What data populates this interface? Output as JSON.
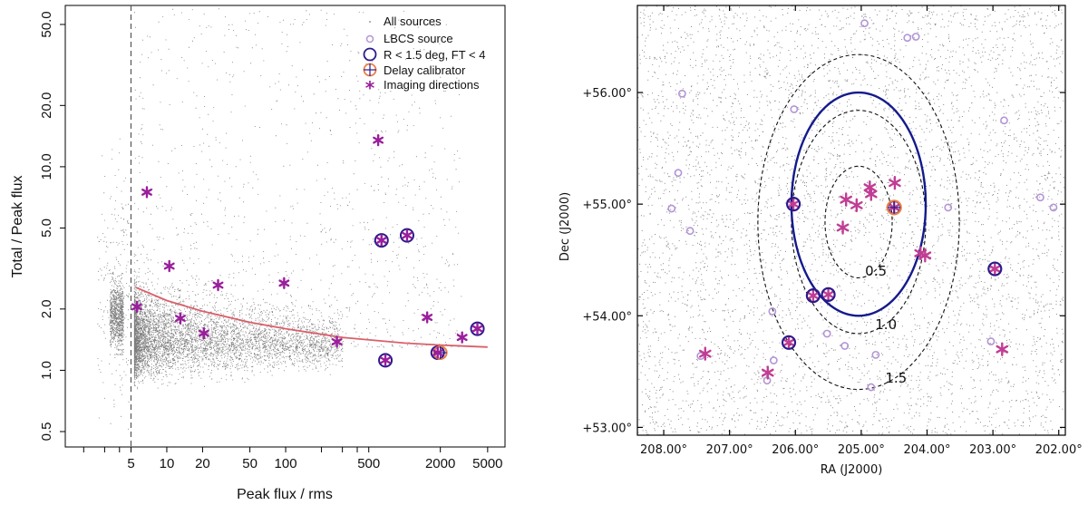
{
  "chart_data": [
    {
      "type": "scatter",
      "xscale": "log",
      "yscale": "log",
      "xlabel": "Peak flux / rms",
      "ylabel": "Total / Peak flux",
      "xlim": [
        1.4,
        7000
      ],
      "ylim": [
        0.42,
        62
      ],
      "xticks": [
        5,
        10,
        20,
        50,
        100,
        500,
        2000,
        5000
      ],
      "xtick_labels": [
        "5",
        "10",
        "20",
        "50",
        "100",
        "500",
        "2000",
        "5000"
      ],
      "yticks": [
        0.5,
        1.0,
        2.0,
        5.0,
        10.0,
        20.0,
        50.0
      ],
      "ytick_labels": [
        "0.5",
        "1.0",
        "2.0",
        "5.0",
        "10.0",
        "20.0",
        "50.0"
      ],
      "threshold_x": 5,
      "envelope_curve": {
        "x": [
          5.5,
          10,
          20,
          50,
          100,
          300,
          1000,
          2000,
          5000
        ],
        "y": [
          2.55,
          2.2,
          1.95,
          1.72,
          1.6,
          1.45,
          1.36,
          1.33,
          1.3
        ]
      },
      "imaging_directions": [
        {
          "x": 6.8,
          "y": 7.5
        },
        {
          "x": 5.6,
          "y": 2.05
        },
        {
          "x": 10.5,
          "y": 3.25
        },
        {
          "x": 13,
          "y": 1.8
        },
        {
          "x": 20.5,
          "y": 1.52
        },
        {
          "x": 27,
          "y": 2.62
        },
        {
          "x": 97,
          "y": 2.68
        },
        {
          "x": 270,
          "y": 1.38
        },
        {
          "x": 600,
          "y": 13.5
        },
        {
          "x": 1550,
          "y": 1.82
        },
        {
          "x": 3050,
          "y": 1.45
        },
        {
          "x": 640,
          "y": 4.35
        },
        {
          "x": 1050,
          "y": 4.6
        },
        {
          "x": 4100,
          "y": 1.6
        },
        {
          "x": 1900,
          "y": 1.22
        },
        {
          "x": 690,
          "y": 1.12
        }
      ],
      "lbcs_r_lt_1p5_ft_lt_4": [
        {
          "x": 640,
          "y": 4.35
        },
        {
          "x": 1050,
          "y": 4.6
        },
        {
          "x": 4100,
          "y": 1.6
        },
        {
          "x": 1900,
          "y": 1.22
        },
        {
          "x": 690,
          "y": 1.12
        }
      ],
      "delay_calibrator": {
        "x": 2000,
        "y": 1.22
      },
      "legend": {
        "position": "top-right",
        "all_sources": "All sources",
        "lbcs_source": "LBCS source",
        "r_ft": "R < 1.5 deg, FT < 4",
        "delay_calibrator": "Delay calibrator",
        "imaging_directions": "Imaging directions"
      },
      "colors": {
        "points": "#7d7d7d",
        "curve": "#d95f6a",
        "star": "#9a1f9c",
        "ring": "#2c1a8c",
        "calibrator": "#e8804a",
        "lbcs": "#b395d6"
      }
    },
    {
      "type": "scatter",
      "xlabel": "RA (J2000)",
      "ylabel": "Dec (J2000)",
      "xlim": [
        208.4,
        201.9
      ],
      "ylim": [
        52.93,
        56.78
      ],
      "xticks": [
        208,
        207,
        206,
        205,
        204,
        203,
        202
      ],
      "xtick_labels": [
        "208.00°",
        "207.00°",
        "206.00°",
        "205.00°",
        "204.00°",
        "203.00°",
        "202.00°"
      ],
      "yticks": [
        53,
        54,
        55,
        56
      ],
      "ytick_labels": [
        "+53.00°",
        "+54.00°",
        "+55.00°",
        "+56.00°"
      ],
      "field_centre": {
        "ra": 205.04,
        "dec": 54.84
      },
      "rings": [
        {
          "radius_deg": 0.5,
          "label": "0.5",
          "style": "dashed"
        },
        {
          "radius_deg": 1.0,
          "label": "1.0",
          "style": "dashed"
        },
        {
          "radius_deg": 1.5,
          "label": "1.5",
          "style": "dashed"
        }
      ],
      "selection_circle": {
        "ra": 205.04,
        "dec": 55.0,
        "radius_deg": 1.0,
        "color": "#141a8c"
      },
      "lbcs_sources": [
        {
          "ra": 207.72,
          "dec": 55.99
        },
        {
          "ra": 207.78,
          "dec": 55.28
        },
        {
          "ra": 207.88,
          "dec": 54.96
        },
        {
          "ra": 207.6,
          "dec": 54.76
        },
        {
          "ra": 206.02,
          "dec": 55.85
        },
        {
          "ra": 204.95,
          "dec": 56.62
        },
        {
          "ra": 204.3,
          "dec": 56.49
        },
        {
          "ra": 204.17,
          "dec": 56.5
        },
        {
          "ra": 203.68,
          "dec": 54.97
        },
        {
          "ra": 202.83,
          "dec": 55.75
        },
        {
          "ra": 202.28,
          "dec": 55.06
        },
        {
          "ra": 202.08,
          "dec": 54.97
        },
        {
          "ra": 206.35,
          "dec": 54.04
        },
        {
          "ra": 206.33,
          "dec": 53.6
        },
        {
          "ra": 206.43,
          "dec": 53.42
        },
        {
          "ra": 205.52,
          "dec": 53.84
        },
        {
          "ra": 205.25,
          "dec": 53.73
        },
        {
          "ra": 204.78,
          "dec": 53.65
        },
        {
          "ra": 204.85,
          "dec": 53.36
        },
        {
          "ra": 203.03,
          "dec": 53.77
        },
        {
          "ra": 207.44,
          "dec": 53.64
        }
      ],
      "selected_sources": [
        {
          "ra": 206.03,
          "dec": 55.0
        },
        {
          "ra": 205.73,
          "dec": 54.18
        },
        {
          "ra": 205.5,
          "dec": 54.19
        },
        {
          "ra": 206.1,
          "dec": 53.76
        },
        {
          "ra": 202.97,
          "dec": 54.42
        },
        {
          "ra": 204.5,
          "dec": 54.97
        }
      ],
      "delay_calibrator": {
        "ra": 204.5,
        "dec": 54.97
      },
      "imaging_directions": [
        {
          "ra": 205.23,
          "dec": 55.04
        },
        {
          "ra": 205.07,
          "dec": 54.99
        },
        {
          "ra": 204.87,
          "dec": 55.15
        },
        {
          "ra": 204.85,
          "dec": 55.09
        },
        {
          "ra": 204.49,
          "dec": 55.19
        },
        {
          "ra": 205.28,
          "dec": 54.79
        },
        {
          "ra": 204.1,
          "dec": 54.56
        },
        {
          "ra": 204.03,
          "dec": 54.54
        },
        {
          "ra": 207.37,
          "dec": 53.66
        },
        {
          "ra": 206.42,
          "dec": 53.49
        },
        {
          "ra": 202.86,
          "dec": 53.7
        },
        {
          "ra": 206.03,
          "dec": 55.0
        },
        {
          "ra": 205.73,
          "dec": 54.18
        },
        {
          "ra": 205.5,
          "dec": 54.19
        },
        {
          "ra": 206.1,
          "dec": 53.76
        },
        {
          "ra": 202.97,
          "dec": 54.42
        },
        {
          "ra": 204.5,
          "dec": 54.97
        }
      ]
    }
  ]
}
